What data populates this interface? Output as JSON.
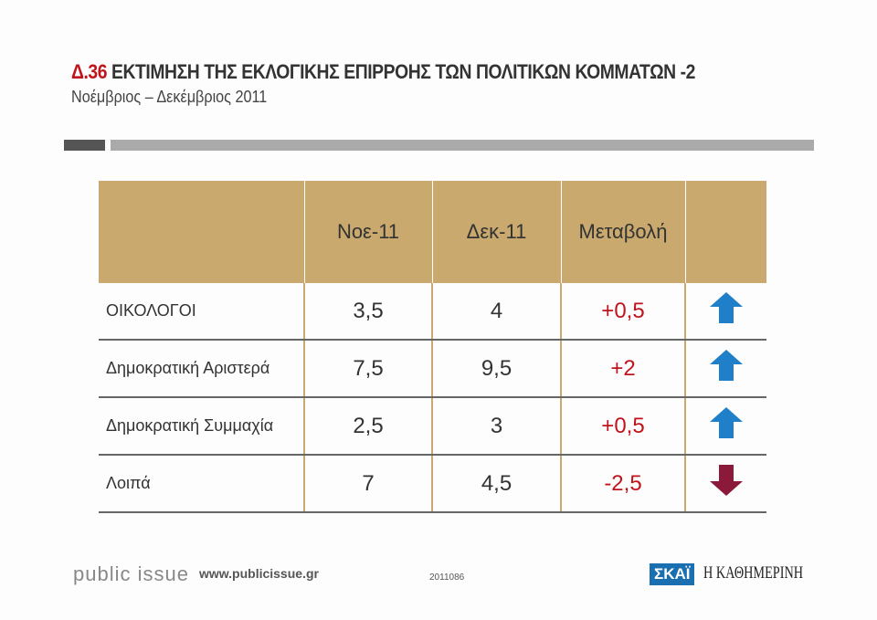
{
  "header": {
    "code": "Δ.36",
    "title": "ΕΚΤΙΜΗΣΗ ΤΗΣ ΕΚΛΟΓΙΚΗΣ ΕΠΙΡΡΟΗΣ ΤΩΝ ΠΟΛΙΤΙΚΩΝ ΚΟΜΜΑΤΩΝ -2",
    "subtitle": "Νοέμβριος – Δεκέμβριος 2011"
  },
  "table": {
    "columns": [
      "",
      "Νοε-11",
      "Δεκ-11",
      "Μεταβολή",
      ""
    ],
    "rows": [
      {
        "party": "ΟΙΚΟΛΟΓΟΙ",
        "nov": "3,5",
        "dec": "4",
        "change": "+0,5",
        "trend": "up"
      },
      {
        "party": "Δημοκρατική Αριστερά",
        "nov": "7,5",
        "dec": "9,5",
        "change": "+2",
        "trend": "up"
      },
      {
        "party": "Δημοκρατική Συμμαχία",
        "nov": "2,5",
        "dec": "3",
        "change": "+0,5",
        "trend": "up"
      },
      {
        "party": "Λοιπά",
        "nov": "7",
        "dec": "4,5",
        "change": "-2,5",
        "trend": "down"
      }
    ]
  },
  "colors": {
    "up": "#1f7fc8",
    "down": "#8b1a3a",
    "header_bg": "#c9a96e",
    "accent": "#c0141c"
  },
  "footer": {
    "brand": "public issue",
    "url": "www.publicissue.gr",
    "code": "2011086",
    "logo1": "ΣΚΑΪ",
    "logo2": "Η ΚΑΘΗΜΕΡΙΝΗ"
  }
}
